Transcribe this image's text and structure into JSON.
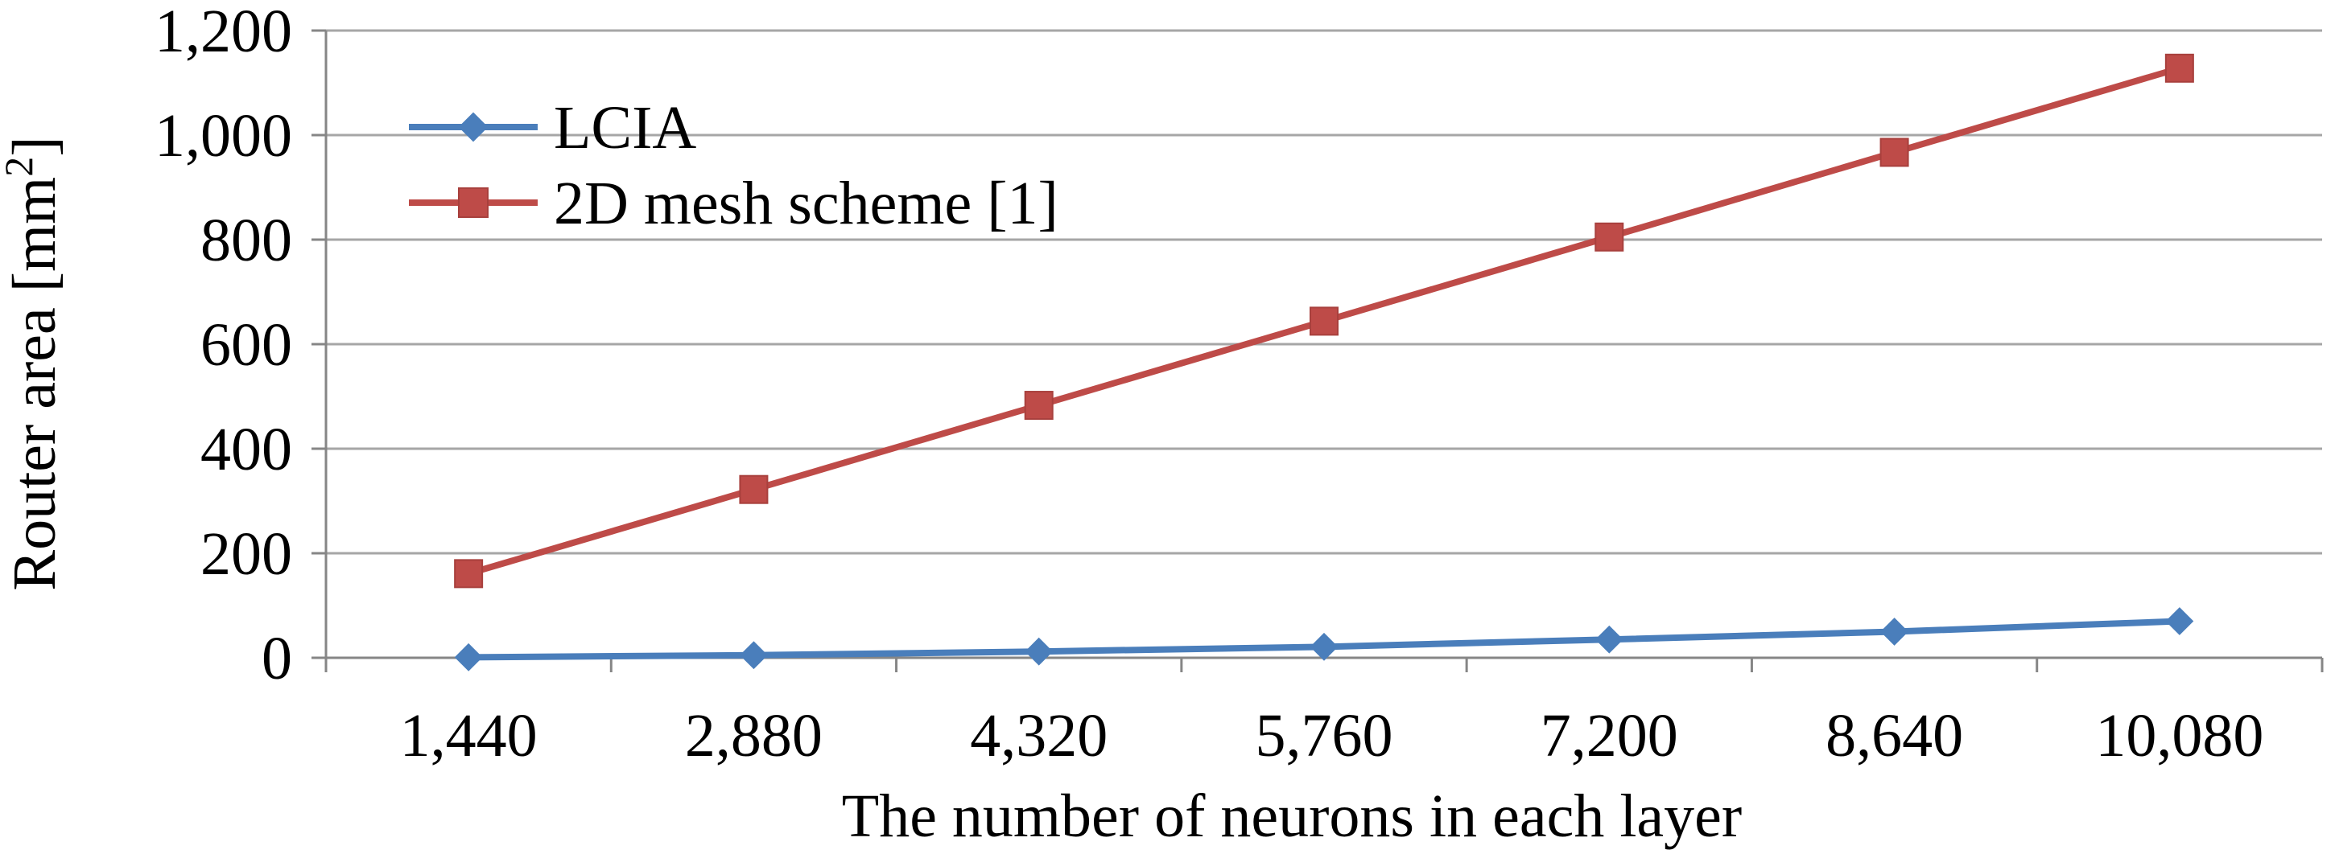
{
  "chart_data": {
    "type": "line",
    "categories": [
      "1,440",
      "2,880",
      "4,320",
      "5,760",
      "7,200",
      "8,640",
      "10,080"
    ],
    "series": [
      {
        "name": "LCIA",
        "values": [
          1,
          5,
          12,
          21,
          35,
          50,
          70
        ],
        "color": "#4a7ebb",
        "marker": "diamond"
      },
      {
        "name": "2D mesh scheme [1]",
        "values": [
          161,
          322,
          483,
          644,
          805,
          967,
          1128
        ],
        "color": "#be4b48",
        "marker": "square"
      }
    ],
    "xlabel": "The number of neurons in each layer",
    "ylabel": {
      "main": "Router area [mm",
      "sup": "2",
      "end": "]"
    },
    "ylim": [
      0,
      1200
    ],
    "yticks": [
      {
        "value": 0,
        "label": "0"
      },
      {
        "value": 200,
        "label": "200"
      },
      {
        "value": 400,
        "label": "400"
      },
      {
        "value": 600,
        "label": "600"
      },
      {
        "value": 800,
        "label": "800"
      },
      {
        "value": 1000,
        "label": "1,000"
      },
      {
        "value": 1200,
        "label": "1,200"
      }
    ],
    "grid": true,
    "legend_position": "top-left",
    "gridline_color": "#a6a6a6",
    "axis_color": "#868686"
  }
}
